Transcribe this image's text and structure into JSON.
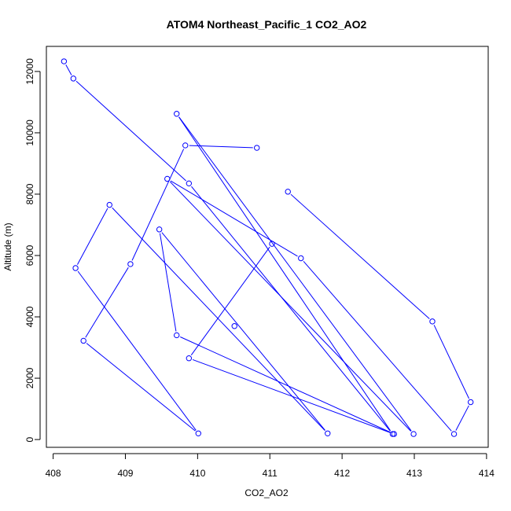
{
  "chart_data": {
    "type": "line",
    "title": "ATOM4 Northeast_Pacific_1 CO2_AO2",
    "xlabel": "CO2_AO2",
    "ylabel": "Altitude (m)",
    "xlim": [
      408,
      414
    ],
    "ylim": [
      0,
      12500
    ],
    "x_ticks": [
      408,
      409,
      410,
      411,
      412,
      413,
      414
    ],
    "y_ticks": [
      0,
      2000,
      4000,
      6000,
      8000,
      10000,
      12000
    ],
    "x_tick_labels": [
      "408",
      "409",
      "410",
      "411",
      "412",
      "413",
      "414"
    ],
    "y_tick_labels": [
      "0",
      "2000",
      "4000",
      "6000",
      "8000",
      "10000",
      "12000"
    ],
    "grid": false,
    "line_color": "#0000ff",
    "marker": "open-circle",
    "series": [
      {
        "x": [
          408.15,
          408.28,
          409.88,
          412.7,
          409.71,
          412.99,
          409.58,
          411.43,
          413.55,
          413.78,
          413.25,
          411.25
        ],
        "y": [
          12330,
          11770,
          8350,
          180,
          10620,
          180,
          8500,
          5910,
          180,
          1220,
          3850,
          8080
        ]
      },
      {
        "x": [
          410.82,
          409.83,
          409.07,
          408.42,
          410.01,
          408.31,
          408.78,
          411.8,
          409.47,
          409.71,
          412.72,
          409.88,
          411.03
        ],
        "y": [
          9510,
          9590,
          5720,
          3220,
          200,
          5590,
          7650,
          200,
          6850,
          3400,
          180,
          2650,
          6380
        ]
      },
      {
        "x": [
          410.51
        ],
        "y": [
          3700
        ]
      }
    ]
  }
}
